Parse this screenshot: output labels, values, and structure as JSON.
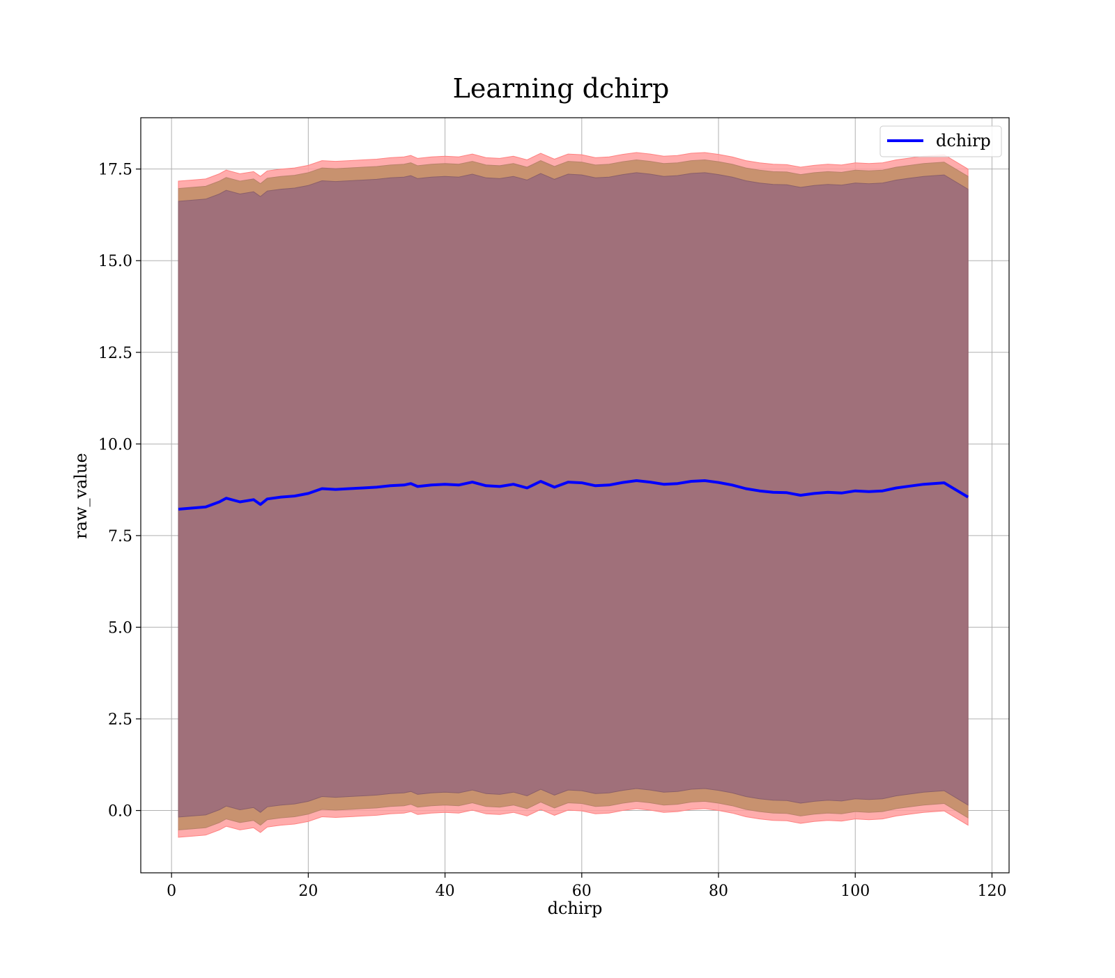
{
  "chart_data": {
    "type": "area",
    "title": "Learning dchirp",
    "xlabel": "dchirp",
    "ylabel": "raw_value",
    "xlim": [
      -4.5,
      122.5
    ],
    "ylim": [
      -1.7,
      18.9
    ],
    "xticks": [
      0,
      20,
      40,
      60,
      80,
      100,
      120
    ],
    "xtick_labels": [
      "0",
      "20",
      "40",
      "60",
      "80",
      "100",
      "120"
    ],
    "yticks": [
      0.0,
      2.5,
      5.0,
      7.5,
      10.0,
      12.5,
      15.0,
      17.5
    ],
    "ytick_labels": [
      "0.0",
      "2.5",
      "5.0",
      "7.5",
      "10.0",
      "12.5",
      "15.0",
      "17.5"
    ],
    "grid": true,
    "legend": {
      "position": "top-right",
      "entries": [
        "dchirp"
      ]
    },
    "colors": {
      "mean_line": "#0000ff",
      "band_outer": "#ff9e9e",
      "band_middle": "#c8926f",
      "band_inner": "#a0707a",
      "grid": "#b0b0b0"
    },
    "series": [
      {
        "name": "dchirp",
        "x": [
          1,
          3,
          5,
          7,
          8,
          10,
          12,
          13,
          14,
          16,
          18,
          20,
          22,
          24,
          26,
          28,
          30,
          32,
          34,
          35,
          36,
          38,
          40,
          42,
          44,
          46,
          48,
          50,
          52,
          54,
          56,
          58,
          60,
          62,
          64,
          66,
          68,
          70,
          72,
          74,
          76,
          78,
          80,
          82,
          84,
          86,
          88,
          90,
          92,
          94,
          96,
          98,
          100,
          102,
          104,
          106,
          108,
          110,
          113,
          116.5
        ],
        "y": [
          8.22,
          8.25,
          8.28,
          8.42,
          8.52,
          8.42,
          8.48,
          8.35,
          8.5,
          8.55,
          8.58,
          8.65,
          8.78,
          8.76,
          8.78,
          8.8,
          8.82,
          8.86,
          8.88,
          8.92,
          8.84,
          8.88,
          8.9,
          8.88,
          8.96,
          8.86,
          8.84,
          8.9,
          8.8,
          8.98,
          8.82,
          8.96,
          8.94,
          8.86,
          8.88,
          8.95,
          9.0,
          8.96,
          8.9,
          8.92,
          8.98,
          9.0,
          8.95,
          8.88,
          8.78,
          8.72,
          8.68,
          8.67,
          8.6,
          8.65,
          8.68,
          8.66,
          8.72,
          8.7,
          8.72,
          8.8,
          8.85,
          8.9,
          8.94,
          8.55
        ]
      }
    ],
    "band_offsets": {
      "outer": 8.95,
      "middle": 8.75,
      "inner": 8.4
    }
  }
}
